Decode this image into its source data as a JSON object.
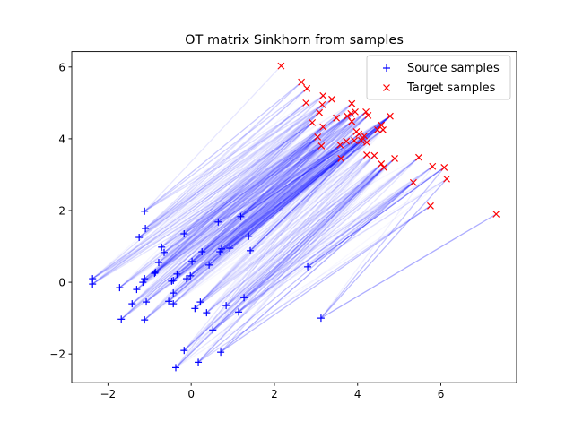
{
  "chart_data": {
    "type": "scatter",
    "title": "OT matrix Sinkhorn from samples",
    "xlabel": "",
    "ylabel": "",
    "xlim": [
      -2.87,
      7.82
    ],
    "ylim": [
      -2.8,
      6.43
    ],
    "xticks": [
      -2,
      0,
      2,
      4,
      6
    ],
    "yticks": [
      -2,
      0,
      2,
      4,
      6
    ],
    "xtick_labels": [
      "−2",
      "0",
      "2",
      "4",
      "6"
    ],
    "ytick_labels": [
      "−2",
      "0",
      "2",
      "4",
      "6"
    ],
    "grid": false,
    "legend_position": "top-right",
    "series": [
      {
        "name": "Source samples",
        "marker": "+",
        "color": "#0000ff",
        "points": [
          [
            -1.12,
            1.98
          ],
          [
            -1.1,
            1.5
          ],
          [
            -1.25,
            1.25
          ],
          [
            -0.17,
            1.35
          ],
          [
            0.65,
            1.68
          ],
          [
            1.19,
            1.83
          ],
          [
            1.38,
            1.28
          ],
          [
            1.42,
            0.88
          ],
          [
            -0.71,
            0.98
          ],
          [
            -0.65,
            0.83
          ],
          [
            0.26,
            0.85
          ],
          [
            0.69,
            0.85
          ],
          [
            0.73,
            0.93
          ],
          [
            0.93,
            0.95
          ],
          [
            -0.78,
            0.55
          ],
          [
            0.02,
            0.58
          ],
          [
            0.43,
            0.48
          ],
          [
            -2.37,
            0.1
          ],
          [
            -2.37,
            -0.05
          ],
          [
            -0.86,
            0.28
          ],
          [
            -0.88,
            0.25
          ],
          [
            -1.12,
            0.1
          ],
          [
            -1.16,
            0.0
          ],
          [
            -0.34,
            0.23
          ],
          [
            -0.43,
            0.05
          ],
          [
            -0.47,
            0.03
          ],
          [
            -0.02,
            0.18
          ],
          [
            -0.11,
            0.1
          ],
          [
            -1.72,
            -0.15
          ],
          [
            -1.31,
            -0.2
          ],
          [
            -0.43,
            -0.3
          ],
          [
            -1.42,
            -0.6
          ],
          [
            -1.08,
            -0.55
          ],
          [
            -0.54,
            -0.53
          ],
          [
            -0.43,
            -0.6
          ],
          [
            0.22,
            -0.55
          ],
          [
            0.09,
            -0.73
          ],
          [
            0.37,
            -0.85
          ],
          [
            0.84,
            -0.65
          ],
          [
            1.27,
            -0.43
          ],
          [
            1.14,
            -0.83
          ],
          [
            -1.68,
            -1.03
          ],
          [
            -1.12,
            -1.05
          ],
          [
            0.52,
            -1.33
          ],
          [
            -0.17,
            -1.9
          ],
          [
            0.71,
            -1.95
          ],
          [
            0.17,
            -2.23
          ],
          [
            -0.37,
            -2.38
          ],
          [
            2.8,
            0.43
          ],
          [
            3.12,
            -1.0
          ]
        ]
      },
      {
        "name": "Target samples",
        "marker": "x",
        "color": "#ff0000",
        "points": [
          [
            2.16,
            6.03
          ],
          [
            2.65,
            5.58
          ],
          [
            2.78,
            5.4
          ],
          [
            3.17,
            5.2
          ],
          [
            3.38,
            5.1
          ],
          [
            3.15,
            4.95
          ],
          [
            2.76,
            5.0
          ],
          [
            3.08,
            4.73
          ],
          [
            2.91,
            4.45
          ],
          [
            3.17,
            4.33
          ],
          [
            3.04,
            4.05
          ],
          [
            3.13,
            3.8
          ],
          [
            3.58,
            3.83
          ],
          [
            3.6,
            3.45
          ],
          [
            3.49,
            4.58
          ],
          [
            3.86,
            4.98
          ],
          [
            3.75,
            4.63
          ],
          [
            3.84,
            4.7
          ],
          [
            3.94,
            4.75
          ],
          [
            3.86,
            4.48
          ],
          [
            4.2,
            4.75
          ],
          [
            4.25,
            4.65
          ],
          [
            4.78,
            4.63
          ],
          [
            4.57,
            4.38
          ],
          [
            4.48,
            4.25
          ],
          [
            4.61,
            4.25
          ],
          [
            3.97,
            4.2
          ],
          [
            4.03,
            4.13
          ],
          [
            4.16,
            4.08
          ],
          [
            4.09,
            3.95
          ],
          [
            3.73,
            3.93
          ],
          [
            3.92,
            3.95
          ],
          [
            4.22,
            3.9
          ],
          [
            4.22,
            3.55
          ],
          [
            4.4,
            3.53
          ],
          [
            4.89,
            3.45
          ],
          [
            4.57,
            3.3
          ],
          [
            4.63,
            3.2
          ],
          [
            5.47,
            3.48
          ],
          [
            5.8,
            3.23
          ],
          [
            6.08,
            3.2
          ],
          [
            5.34,
            2.78
          ],
          [
            6.14,
            2.88
          ],
          [
            5.75,
            2.13
          ],
          [
            7.33,
            1.9
          ]
        ]
      }
    ],
    "transport_line_color": "#0000ff"
  }
}
